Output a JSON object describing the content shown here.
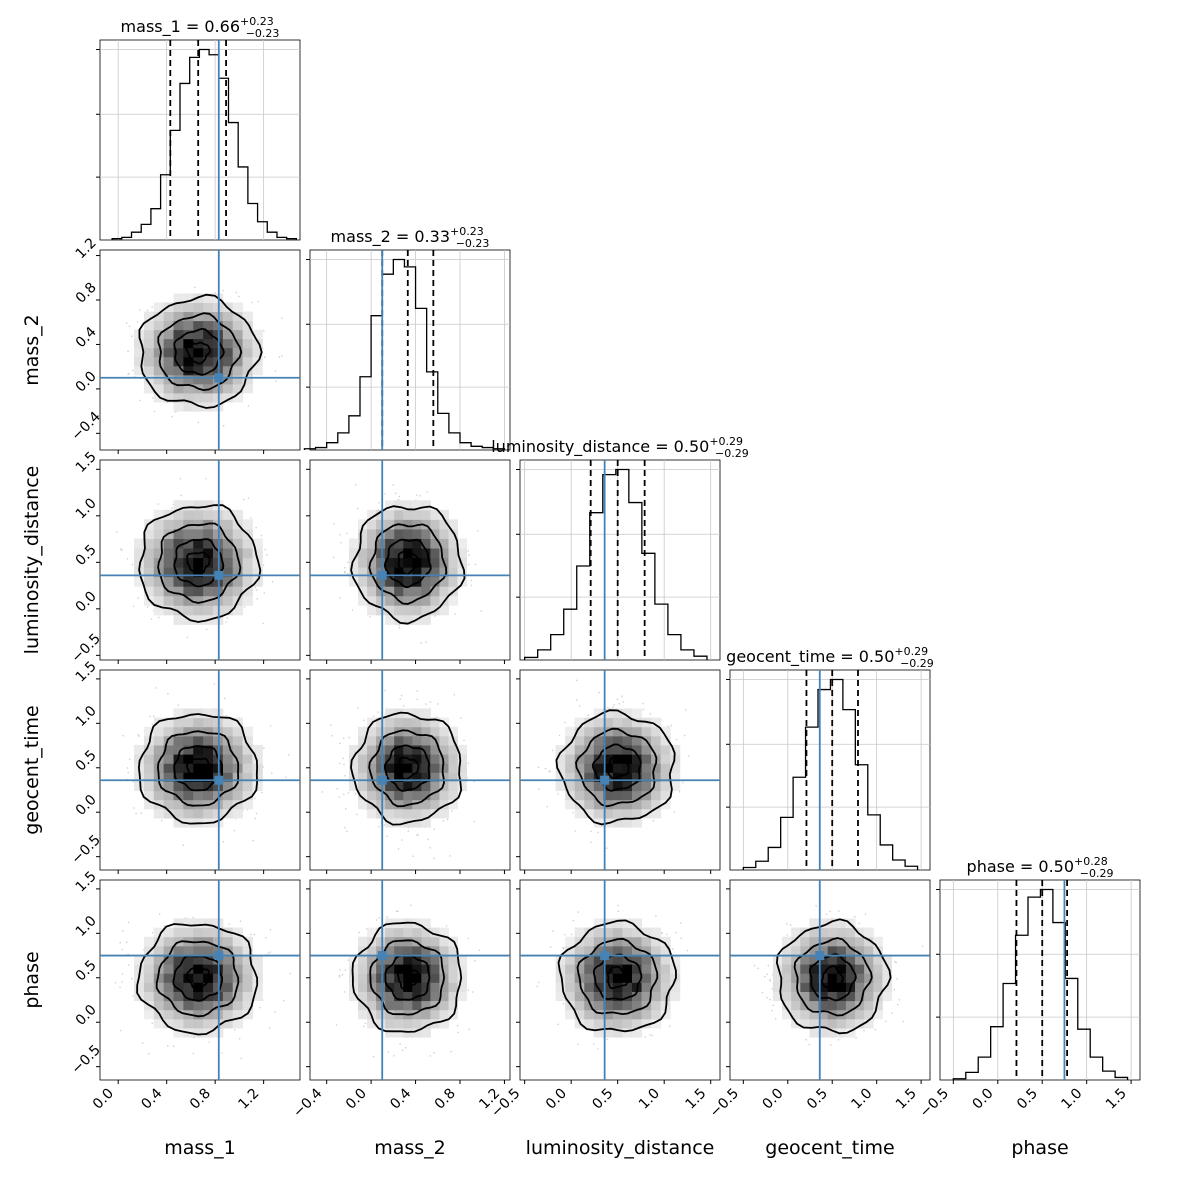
{
  "chart_data": {
    "type": "corner",
    "params": [
      "mass_1",
      "mass_2",
      "luminosity_distance",
      "geocent_time",
      "phase"
    ],
    "axis_labels": [
      "mass_1",
      "mass_2",
      "luminosity_distance",
      "geocent_time",
      "phase"
    ],
    "ranges": [
      [
        -0.15,
        1.5
      ],
      [
        -0.55,
        1.25
      ],
      [
        -0.55,
        1.6
      ],
      [
        -0.65,
        1.6
      ],
      [
        -0.65,
        1.6
      ]
    ],
    "ticks": [
      {
        "values": [
          0.0,
          0.4,
          0.8,
          1.2
        ],
        "labels": [
          "0.0",
          "0.4",
          "0.8",
          "1.2"
        ]
      },
      {
        "values": [
          -0.4,
          0.0,
          0.4,
          0.8,
          1.2
        ],
        "labels": [
          "−0.4",
          "0.0",
          "0.4",
          "0.8",
          "1.2"
        ]
      },
      {
        "values": [
          -0.5,
          0.0,
          0.5,
          1.0,
          1.5
        ],
        "labels": [
          "−0.5",
          "0.0",
          "0.5",
          "1.0",
          "1.5"
        ]
      },
      {
        "values": [
          -0.5,
          0.0,
          0.5,
          1.0,
          1.5
        ],
        "labels": [
          "−0.5",
          "0.0",
          "0.5",
          "1.0",
          "1.5"
        ]
      },
      {
        "values": [
          -0.5,
          0.0,
          0.5,
          1.0,
          1.5
        ],
        "labels": [
          "−0.5",
          "0.0",
          "0.5",
          "1.0",
          "1.5"
        ]
      }
    ],
    "titles": [
      {
        "name": "mass_1",
        "median": "0.66",
        "plus": "+0.23",
        "minus": "−0.23"
      },
      {
        "name": "mass_2",
        "median": "0.33",
        "plus": "+0.23",
        "minus": "−0.23"
      },
      {
        "name": "luminosity_distance",
        "median": "0.50",
        "plus": "+0.29",
        "minus": "−0.29"
      },
      {
        "name": "geocent_time",
        "median": "0.50",
        "plus": "+0.29",
        "minus": "−0.29"
      },
      {
        "name": "phase",
        "median": "0.50",
        "plus": "+0.28",
        "minus": "−0.29"
      }
    ],
    "truths": [
      0.83,
      0.1,
      0.36,
      0.36,
      0.75
    ],
    "means": [
      0.66,
      0.33,
      0.5,
      0.5,
      0.5
    ],
    "sigmas": [
      0.23,
      0.23,
      0.29,
      0.29,
      0.29
    ],
    "quantiles": [
      [
        0.43,
        0.66,
        0.89
      ],
      [
        0.1,
        0.33,
        0.56
      ],
      [
        0.21,
        0.5,
        0.79
      ],
      [
        0.21,
        0.5,
        0.79
      ],
      [
        0.21,
        0.5,
        0.78
      ]
    ],
    "histograms": [
      {
        "edges": [
          -0.05,
          0.03,
          0.11,
          0.19,
          0.27,
          0.35,
          0.43,
          0.51,
          0.59,
          0.67,
          0.75,
          0.83,
          0.91,
          0.99,
          1.07,
          1.15,
          1.23,
          1.31,
          1.39,
          1.47
        ],
        "counts": [
          0.5,
          1,
          3,
          6,
          12,
          25,
          42,
          60,
          70,
          73,
          71,
          62,
          45,
          28,
          14,
          7,
          3,
          1,
          0.5
        ]
      },
      {
        "edges": [
          -0.6,
          -0.5,
          -0.4,
          -0.3,
          -0.2,
          -0.1,
          0.0,
          0.1,
          0.2,
          0.3,
          0.4,
          0.5,
          0.6,
          0.7,
          0.8,
          0.9,
          1.0,
          1.1,
          1.2
        ],
        "counts": [
          0.5,
          1,
          3,
          7,
          14,
          30,
          55,
          72,
          78,
          75,
          58,
          32,
          15,
          7,
          3,
          1.5,
          1,
          0.5
        ]
      },
      {
        "edges": [
          -0.5,
          -0.36,
          -0.22,
          -0.08,
          0.06,
          0.2,
          0.34,
          0.48,
          0.62,
          0.76,
          0.9,
          1.04,
          1.18,
          1.32,
          1.46
        ],
        "counts": [
          1,
          4,
          10,
          20,
          37,
          58,
          73,
          75,
          62,
          42,
          22,
          10,
          4,
          1.5
        ]
      },
      {
        "edges": [
          -0.5,
          -0.36,
          -0.22,
          -0.08,
          0.06,
          0.2,
          0.34,
          0.48,
          0.62,
          0.76,
          0.9,
          1.04,
          1.18,
          1.32,
          1.46
        ],
        "counts": [
          1,
          3.5,
          9,
          21,
          37,
          57,
          72,
          76,
          64,
          42,
          22,
          10,
          4,
          1.5
        ]
      },
      {
        "edges": [
          -0.5,
          -0.36,
          -0.22,
          -0.08,
          0.06,
          0.2,
          0.34,
          0.48,
          0.62,
          0.76,
          0.9,
          1.04,
          1.18,
          1.32,
          1.46
        ],
        "counts": [
          0.5,
          3,
          9,
          21,
          38,
          57,
          72,
          75,
          62,
          40,
          20,
          9,
          3.5,
          1
        ]
      }
    ]
  }
}
